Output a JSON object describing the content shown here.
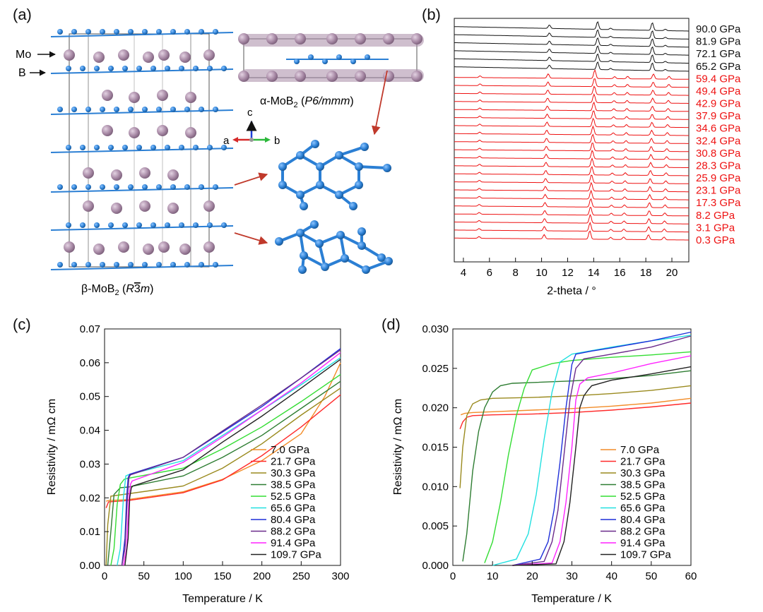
{
  "panel_letters": {
    "a": "(a)",
    "b": "(b)",
    "c": "(c)",
    "d": "(d)"
  },
  "structure": {
    "label_mo": "Mo",
    "label_b": "B",
    "alpha_prefix": "α-MoB",
    "alpha_sub": "2",
    "alpha_space_group": "P6/mmm",
    "beta_prefix": "β-MoB",
    "beta_sub": "2",
    "beta_space_group_R": "R",
    "beta_space_group_3": "3",
    "beta_space_group_m": "m",
    "axis_a": "a",
    "axis_b": "b",
    "axis_c": "c",
    "colors": {
      "mo": "#a88aa6",
      "b": "#2b7fd4",
      "arrow": "#c0392b"
    }
  },
  "chart_data": [
    {
      "id": "b",
      "type": "line",
      "xlabel": "2-theta / °",
      "xlim": [
        3.3,
        21.3
      ],
      "xticks": [
        4,
        6,
        8,
        10,
        12,
        14,
        16,
        18,
        20
      ],
      "peaks_at_0.3GPa": [
        5.2,
        10.2,
        13.7,
        15.3,
        16.3,
        18.2,
        19.4
      ],
      "peaks_at_90GPa": [
        10.6,
        14.3,
        18.5
      ],
      "series_labels": [
        {
          "name": "90.0 GPa",
          "color": "#111111"
        },
        {
          "name": "81.9 GPa",
          "color": "#111111"
        },
        {
          "name": "72.1 GPa",
          "color": "#111111"
        },
        {
          "name": "65.2 GPa",
          "color": "#111111"
        },
        {
          "name": "59.4 GPa",
          "color": "#ee1111"
        },
        {
          "name": "49.4 GPa",
          "color": "#ee1111"
        },
        {
          "name": "42.9 GPa",
          "color": "#ee1111"
        },
        {
          "name": "37.9 GPa",
          "color": "#ee1111"
        },
        {
          "name": "34.6 GPa",
          "color": "#ee1111"
        },
        {
          "name": "32.4 GPa",
          "color": "#ee1111"
        },
        {
          "name": "30.8 GPa",
          "color": "#ee1111"
        },
        {
          "name": "28.3 GPa",
          "color": "#ee1111"
        },
        {
          "name": "25.9 GPa",
          "color": "#ee1111"
        },
        {
          "name": "23.1 GPa",
          "color": "#ee1111"
        },
        {
          "name": "17.3 GPa",
          "color": "#ee1111"
        },
        {
          "name": "8.2 GPa",
          "color": "#ee1111"
        },
        {
          "name": "3.1 GPa",
          "color": "#ee1111"
        },
        {
          "name": "0.3 GPa",
          "color": "#ee1111"
        }
      ],
      "total_curves_black": 6,
      "total_curves_red": 21
    },
    {
      "id": "c",
      "type": "line",
      "xlabel": "Temperature / K",
      "ylabel": "Resistivity / mΩ cm",
      "xlim": [
        0,
        300
      ],
      "ylim": [
        0,
        0.07
      ],
      "xticks": [
        0,
        50,
        100,
        150,
        200,
        250,
        300
      ],
      "yticks": [
        0.0,
        0.01,
        0.02,
        0.03,
        0.04,
        0.05,
        0.06,
        0.07
      ],
      "ytick_labels": [
        "0.00",
        "0.01",
        "0.02",
        "0.03",
        "0.04",
        "0.05",
        "0.06",
        "0.07"
      ],
      "legend": "bottom-right",
      "series": [
        {
          "name": "7.0 GPa",
          "color": "#f28c28",
          "tc": 0,
          "x": [
            2,
            5,
            30,
            100,
            150,
            200,
            250,
            280,
            300
          ],
          "y": [
            0.019,
            0.0192,
            0.0195,
            0.0218,
            0.0255,
            0.031,
            0.039,
            0.05,
            0.06
          ]
        },
        {
          "name": "21.7 GPa",
          "color": "#ff2a2a",
          "tc": 0,
          "x": [
            2,
            5,
            30,
            100,
            150,
            200,
            250,
            300
          ],
          "y": [
            0.017,
            0.0188,
            0.0192,
            0.0215,
            0.0253,
            0.0325,
            0.041,
            0.0505
          ]
        },
        {
          "name": "30.3 GPa",
          "color": "#9a8a1e",
          "tc": 4,
          "x": [
            2,
            4,
            8,
            30,
            100,
            150,
            200,
            250,
            300
          ],
          "y": [
            0.0,
            0.012,
            0.0205,
            0.0212,
            0.0235,
            0.0288,
            0.036,
            0.0445,
            0.0525
          ]
        },
        {
          "name": "38.5 GPa",
          "color": "#2e7d32",
          "tc": 9,
          "x": [
            4,
            8,
            12,
            20,
            30,
            100,
            150,
            200,
            250,
            300
          ],
          "y": [
            0.0,
            0.01,
            0.021,
            0.023,
            0.0232,
            0.0265,
            0.032,
            0.0385,
            0.0465,
            0.0545
          ]
        },
        {
          "name": "52.5 GPa",
          "color": "#33dd33",
          "tc": 15,
          "x": [
            8,
            12,
            16,
            20,
            25,
            30,
            100,
            150,
            200,
            250,
            300
          ],
          "y": [
            0.0,
            0.005,
            0.018,
            0.024,
            0.0255,
            0.0258,
            0.0288,
            0.0345,
            0.041,
            0.0485,
            0.0565
          ]
        },
        {
          "name": "65.6 GPa",
          "color": "#22e0e0",
          "tc": 24,
          "x": [
            16,
            20,
            24,
            27,
            30,
            100,
            150,
            200,
            250,
            300
          ],
          "y": [
            0.0,
            0.005,
            0.02,
            0.0265,
            0.0268,
            0.031,
            0.0385,
            0.046,
            0.0535,
            0.0615
          ]
        },
        {
          "name": "80.4 GPa",
          "color": "#1f2fd9",
          "tc": 28,
          "x": [
            22,
            26,
            28,
            30,
            32,
            100,
            150,
            200,
            250,
            300
          ],
          "y": [
            0.0,
            0.008,
            0.02,
            0.026,
            0.027,
            0.032,
            0.0395,
            0.047,
            0.0555,
            0.0642
          ]
        },
        {
          "name": "88.2 GPa",
          "color": "#6a2a8a",
          "tc": 29,
          "x": [
            22,
            26,
            29,
            31,
            33,
            100,
            150,
            200,
            250,
            300
          ],
          "y": [
            0.0,
            0.005,
            0.02,
            0.026,
            0.0268,
            0.032,
            0.0398,
            0.0475,
            0.0555,
            0.0638
          ]
        },
        {
          "name": "91.4 GPa",
          "color": "#ff22ff",
          "tc": 31,
          "x": [
            24,
            28,
            31,
            33,
            35,
            100,
            150,
            200,
            250,
            300
          ],
          "y": [
            0.0,
            0.005,
            0.02,
            0.024,
            0.025,
            0.0305,
            0.038,
            0.046,
            0.054,
            0.063
          ]
        },
        {
          "name": "109.7 GPa",
          "color": "#222222",
          "tc": 32,
          "x": [
            26,
            30,
            32,
            34,
            36,
            100,
            150,
            200,
            250,
            300
          ],
          "y": [
            0.0,
            0.008,
            0.02,
            0.023,
            0.0235,
            0.0283,
            0.0365,
            0.0442,
            0.0525,
            0.061
          ]
        }
      ]
    },
    {
      "id": "d",
      "type": "line",
      "xlabel": "Temperature / K",
      "ylabel": "Resistivity / mΩ cm",
      "xlim": [
        0,
        60
      ],
      "ylim": [
        0,
        0.03
      ],
      "xticks": [
        0,
        10,
        20,
        30,
        40,
        50,
        60
      ],
      "yticks": [
        0.0,
        0.005,
        0.01,
        0.015,
        0.02,
        0.025,
        0.03
      ],
      "ytick_labels": [
        "0.000",
        "0.005",
        "0.010",
        "0.015",
        "0.020",
        "0.025",
        "0.030"
      ],
      "legend": "bottom-right",
      "series": [
        {
          "name": "7.0 GPa",
          "color": "#f28c28",
          "x": [
            2,
            3,
            5,
            10,
            20,
            30,
            40,
            50,
            60
          ],
          "y": [
            0.0191,
            0.0193,
            0.0194,
            0.0195,
            0.0197,
            0.0199,
            0.0202,
            0.0206,
            0.0212
          ]
        },
        {
          "name": "21.7 GPa",
          "color": "#ff2a2a",
          "x": [
            1.8,
            2.5,
            3.5,
            5,
            10,
            20,
            30,
            40,
            50,
            60
          ],
          "y": [
            0.0173,
            0.0182,
            0.0188,
            0.019,
            0.0191,
            0.0192,
            0.0194,
            0.0197,
            0.0201,
            0.0206
          ]
        },
        {
          "name": "30.3 GPa",
          "color": "#9a8a1e",
          "x": [
            1.8,
            2.5,
            3.5,
            5,
            7,
            10,
            20,
            30,
            40,
            50,
            60
          ],
          "y": [
            0.0098,
            0.015,
            0.019,
            0.0205,
            0.021,
            0.0212,
            0.0213,
            0.0215,
            0.0218,
            0.0222,
            0.0228
          ]
        },
        {
          "name": "38.5 GPa",
          "color": "#2e7d32",
          "x": [
            2.5,
            3.5,
            5,
            6.5,
            8,
            10,
            12,
            15,
            20,
            30,
            40,
            50,
            60
          ],
          "y": [
            0.0005,
            0.004,
            0.012,
            0.017,
            0.02,
            0.022,
            0.0228,
            0.0231,
            0.0232,
            0.0234,
            0.0237,
            0.0241,
            0.0247
          ]
        },
        {
          "name": "52.5 GPa",
          "color": "#33dd33",
          "x": [
            8,
            10,
            12,
            14,
            16,
            18,
            20,
            25,
            30,
            40,
            50,
            60
          ],
          "y": [
            0.0003,
            0.003,
            0.008,
            0.014,
            0.019,
            0.0225,
            0.0248,
            0.0256,
            0.026,
            0.0264,
            0.0267,
            0.0271
          ]
        },
        {
          "name": "65.6 GPa",
          "color": "#22e0e0",
          "x": [
            10,
            16,
            19,
            21,
            23,
            25,
            27,
            30,
            40,
            50,
            60
          ],
          "y": [
            0.0,
            0.0008,
            0.004,
            0.009,
            0.016,
            0.022,
            0.0258,
            0.0268,
            0.0277,
            0.0285,
            0.0292
          ]
        },
        {
          "name": "80.4 GPa",
          "color": "#1f2fd9",
          "x": [
            15,
            22,
            24,
            25.5,
            27,
            28.5,
            30,
            31,
            35,
            40,
            50,
            60
          ],
          "y": [
            0.0,
            0.0008,
            0.003,
            0.007,
            0.013,
            0.02,
            0.0255,
            0.0268,
            0.0272,
            0.0276,
            0.0285,
            0.0296
          ]
        },
        {
          "name": "88.2 GPa",
          "color": "#6a2a8a",
          "x": [
            15,
            23,
            25,
            26.5,
            28,
            29.5,
            31,
            33,
            40,
            50,
            60
          ],
          "y": [
            0.0,
            0.0005,
            0.003,
            0.007,
            0.014,
            0.021,
            0.025,
            0.0262,
            0.0268,
            0.0277,
            0.0291
          ]
        },
        {
          "name": "91.4 GPa",
          "color": "#ff22ff",
          "x": [
            15,
            25,
            27,
            28.5,
            30,
            31,
            32,
            34,
            40,
            50,
            60
          ],
          "y": [
            0.0,
            0.0003,
            0.003,
            0.008,
            0.015,
            0.021,
            0.023,
            0.0238,
            0.0244,
            0.0256,
            0.0266
          ]
        },
        {
          "name": "109.7 GPa",
          "color": "#222222",
          "x": [
            15,
            26,
            28,
            29.5,
            31,
            32,
            33,
            34,
            35,
            40,
            50,
            60
          ],
          "y": [
            0.0,
            0.0002,
            0.003,
            0.008,
            0.015,
            0.02,
            0.0215,
            0.0222,
            0.0228,
            0.0235,
            0.0243,
            0.0252
          ]
        }
      ]
    }
  ]
}
